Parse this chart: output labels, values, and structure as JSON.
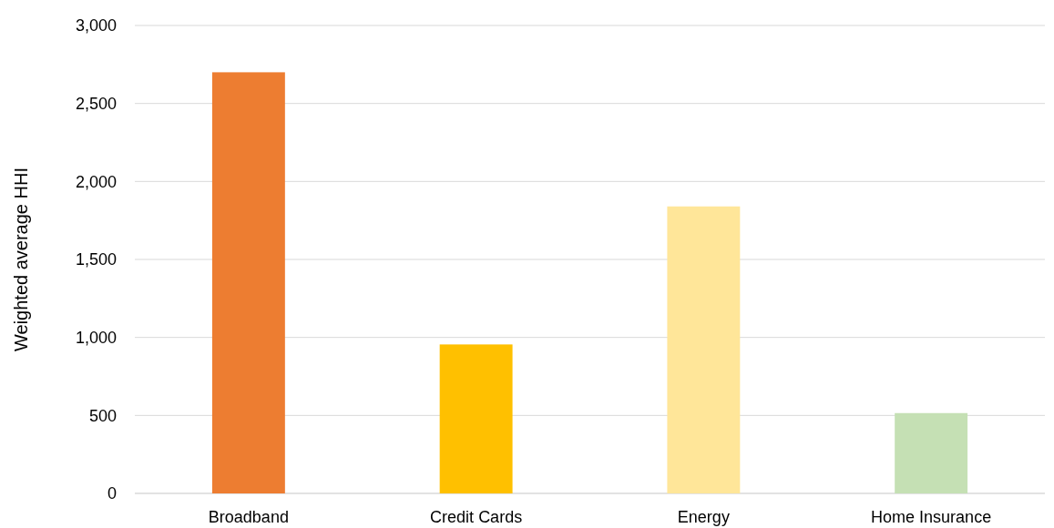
{
  "chart_data": {
    "type": "bar",
    "ylabel": "Weighted average HHI",
    "categories": [
      "Broadband",
      "Credit Cards",
      "Energy",
      "Home Insurance"
    ],
    "values": [
      2700,
      955,
      1840,
      515
    ],
    "colors": [
      "#ed7d31",
      "#ffc000",
      "#ffe699",
      "#c5e0b4"
    ],
    "ylim": [
      0,
      3000
    ],
    "yticks": [
      {
        "value": 0,
        "label": "0"
      },
      {
        "value": 500,
        "label": "500"
      },
      {
        "value": 1000,
        "label": "1,000"
      },
      {
        "value": 1500,
        "label": "1,500"
      },
      {
        "value": 2000,
        "label": "2,000"
      },
      {
        "value": 2500,
        "label": "2,500"
      },
      {
        "value": 3000,
        "label": "3,000"
      }
    ],
    "grid": "y"
  }
}
